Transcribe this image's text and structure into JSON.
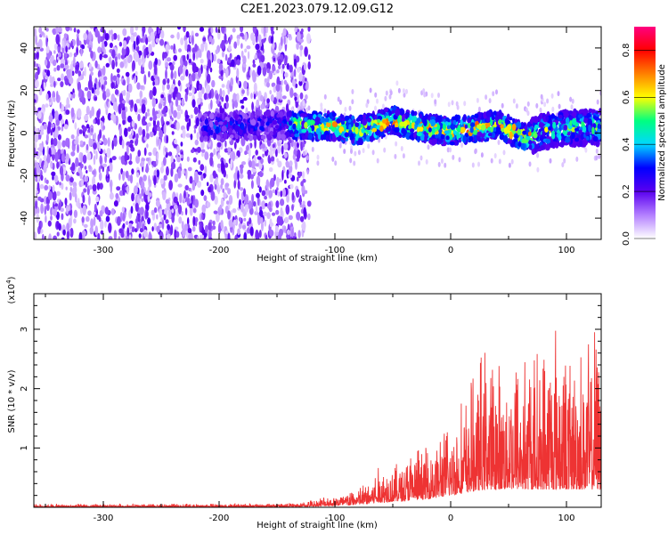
{
  "title": "C2E1.2023.079.12.09.G12",
  "chart_data": [
    {
      "type": "heatmap",
      "title": "C2E1.2023.079.12.09.G12",
      "xlabel": "Height of straight line (km)",
      "ylabel": "Frequency (Hz)",
      "xlim": [
        -360,
        130
      ],
      "ylim": [
        -50,
        50
      ],
      "x_ticks": [
        -300,
        -200,
        -100,
        0,
        100
      ],
      "y_ticks": [
        -40,
        -20,
        0,
        20,
        40
      ],
      "colorbar": {
        "label": "Normalized spectral amplitude",
        "range": [
          0.0,
          0.9
        ],
        "ticks": [
          0.0,
          0.2,
          0.4,
          0.6,
          0.8
        ],
        "colors": [
          "#ffffff",
          "#b37fff",
          "#5a00f0",
          "#0000ff",
          "#00d8ff",
          "#00ff80",
          "#ffff00",
          "#ff8000",
          "#ff0000",
          "#ff0080"
        ]
      },
      "signal_band": {
        "x_range": [
          -215,
          130
        ],
        "center_frequency": [
          [
            -200,
            3
          ],
          [
            -150,
            4
          ],
          [
            -100,
            3
          ],
          [
            -80,
            1
          ],
          [
            -50,
            6
          ],
          [
            -20,
            2
          ],
          [
            0,
            1
          ],
          [
            20,
            2
          ],
          [
            40,
            4
          ],
          [
            65,
            -2
          ],
          [
            90,
            2
          ],
          [
            130,
            3
          ]
        ],
        "noise_region_x": [
          -360,
          -128
        ]
      }
    },
    {
      "type": "line",
      "xlabel": "Height of straight line (km)",
      "ylabel": "SNR (10 * v/v)",
      "y_scale_label": "(x10^4)",
      "xlim": [
        -360,
        130
      ],
      "ylim": [
        0,
        3.6
      ],
      "x_ticks": [
        -300,
        -200,
        -100,
        0,
        100
      ],
      "y_ticks": [
        1,
        2,
        3
      ],
      "color": "#ee3333",
      "envelope": {
        "x": [
          -360,
          -200,
          -130,
          -110,
          -90,
          -75,
          -60,
          -45,
          -30,
          -15,
          0,
          15,
          30,
          45,
          60,
          75,
          90,
          105,
          130
        ],
        "y_low": [
          0,
          0,
          0.01,
          0.02,
          0.03,
          0.05,
          0.08,
          0.1,
          0.12,
          0.15,
          0.2,
          0.25,
          0.3,
          0.3,
          0.3,
          0.3,
          0.3,
          0.3,
          0.3
        ],
        "y_high": [
          0.06,
          0.07,
          0.08,
          0.2,
          0.3,
          0.45,
          0.8,
          0.9,
          1.1,
          1.3,
          1.6,
          2.2,
          3.0,
          2.6,
          3.3,
          2.9,
          3.6,
          2.8,
          3.4
        ]
      }
    }
  ]
}
